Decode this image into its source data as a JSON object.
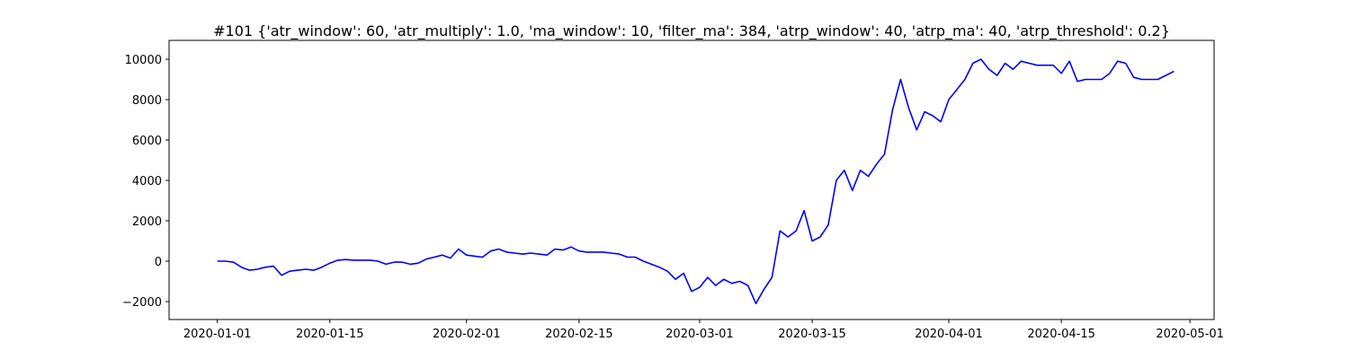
{
  "chart_data": {
    "type": "line",
    "title": "#101 {'atr_window': 60, 'atr_multiply': 1.0, 'ma_window': 10, 'filter_ma': 384, 'atrp_window': 40, 'atrp_ma': 40, 'atrp_threshold': 0.2}",
    "color": "#0000ff",
    "x": [
      "2020-01-01",
      "2020-01-02",
      "2020-01-03",
      "2020-01-04",
      "2020-01-05",
      "2020-01-06",
      "2020-01-07",
      "2020-01-08",
      "2020-01-09",
      "2020-01-10",
      "2020-01-11",
      "2020-01-12",
      "2020-01-13",
      "2020-01-14",
      "2020-01-15",
      "2020-01-16",
      "2020-01-17",
      "2020-01-18",
      "2020-01-19",
      "2020-01-20",
      "2020-01-21",
      "2020-01-22",
      "2020-01-23",
      "2020-01-24",
      "2020-01-25",
      "2020-01-26",
      "2020-01-27",
      "2020-01-28",
      "2020-01-29",
      "2020-01-30",
      "2020-01-31",
      "2020-02-01",
      "2020-02-02",
      "2020-02-03",
      "2020-02-04",
      "2020-02-05",
      "2020-02-06",
      "2020-02-07",
      "2020-02-08",
      "2020-02-09",
      "2020-02-10",
      "2020-02-11",
      "2020-02-12",
      "2020-02-13",
      "2020-02-14",
      "2020-02-15",
      "2020-02-16",
      "2020-02-17",
      "2020-02-18",
      "2020-02-19",
      "2020-02-20",
      "2020-02-21",
      "2020-02-22",
      "2020-02-23",
      "2020-02-24",
      "2020-02-25",
      "2020-02-26",
      "2020-02-27",
      "2020-02-28",
      "2020-02-29",
      "2020-03-01",
      "2020-03-02",
      "2020-03-03",
      "2020-03-04",
      "2020-03-05",
      "2020-03-06",
      "2020-03-07",
      "2020-03-08",
      "2020-03-09",
      "2020-03-10",
      "2020-03-11",
      "2020-03-12",
      "2020-03-13",
      "2020-03-14",
      "2020-03-15",
      "2020-03-16",
      "2020-03-17",
      "2020-03-18",
      "2020-03-19",
      "2020-03-20",
      "2020-03-21",
      "2020-03-22",
      "2020-03-23",
      "2020-03-24",
      "2020-03-25",
      "2020-03-26",
      "2020-03-27",
      "2020-03-28",
      "2020-03-29",
      "2020-03-30",
      "2020-03-31",
      "2020-04-01",
      "2020-04-02",
      "2020-04-03",
      "2020-04-04",
      "2020-04-05",
      "2020-04-06",
      "2020-04-07",
      "2020-04-08",
      "2020-04-09",
      "2020-04-10",
      "2020-04-11",
      "2020-04-12",
      "2020-04-13",
      "2020-04-14",
      "2020-04-15",
      "2020-04-16",
      "2020-04-17",
      "2020-04-18",
      "2020-04-19",
      "2020-04-20",
      "2020-04-21",
      "2020-04-22",
      "2020-04-23",
      "2020-04-24",
      "2020-04-25",
      "2020-04-26",
      "2020-04-27",
      "2020-04-28",
      "2020-04-29"
    ],
    "values": [
      0,
      0,
      -50,
      -300,
      -450,
      -400,
      -300,
      -250,
      -700,
      -500,
      -450,
      -400,
      -450,
      -300,
      -100,
      50,
      80,
      50,
      50,
      50,
      0,
      -150,
      -50,
      -50,
      -150,
      -100,
      100,
      200,
      300,
      150,
      600,
      300,
      250,
      200,
      500,
      600,
      450,
      400,
      350,
      400,
      350,
      300,
      600,
      550,
      700,
      500,
      450,
      450,
      450,
      400,
      350,
      200,
      200,
      0,
      -150,
      -300,
      -500,
      -900,
      -600,
      -1500,
      -1300,
      -800,
      -1200,
      -900,
      -1100,
      -1000,
      -1200,
      -2100,
      -1400,
      -800,
      1500,
      1200,
      1500,
      2500,
      1000,
      1200,
      1800,
      4000,
      4500,
      3500,
      4500,
      4200,
      4800,
      5300,
      7500,
      9000,
      7600,
      6500,
      7400,
      7200,
      6900,
      8000,
      8500,
      9000,
      9800,
      10000,
      9500,
      9200,
      9800,
      9500,
      9900,
      9800,
      9700,
      9700,
      9700,
      9300,
      9900,
      8900,
      9000,
      9000,
      9000,
      9300,
      9900,
      9800,
      9100,
      9000,
      9000,
      9000,
      9200,
      9400
    ],
    "xlim": [
      "2019-12-26",
      "2020-05-04"
    ],
    "ylim": [
      -2889,
      10933
    ],
    "xticks": [
      "2020-01-01",
      "2020-01-15",
      "2020-02-01",
      "2020-02-15",
      "2020-03-01",
      "2020-03-15",
      "2020-04-01",
      "2020-04-15",
      "2020-05-01"
    ],
    "yticks": [
      {
        "value": -2000,
        "label": "−2000"
      },
      0,
      2000,
      4000,
      6000,
      8000,
      10000
    ]
  }
}
